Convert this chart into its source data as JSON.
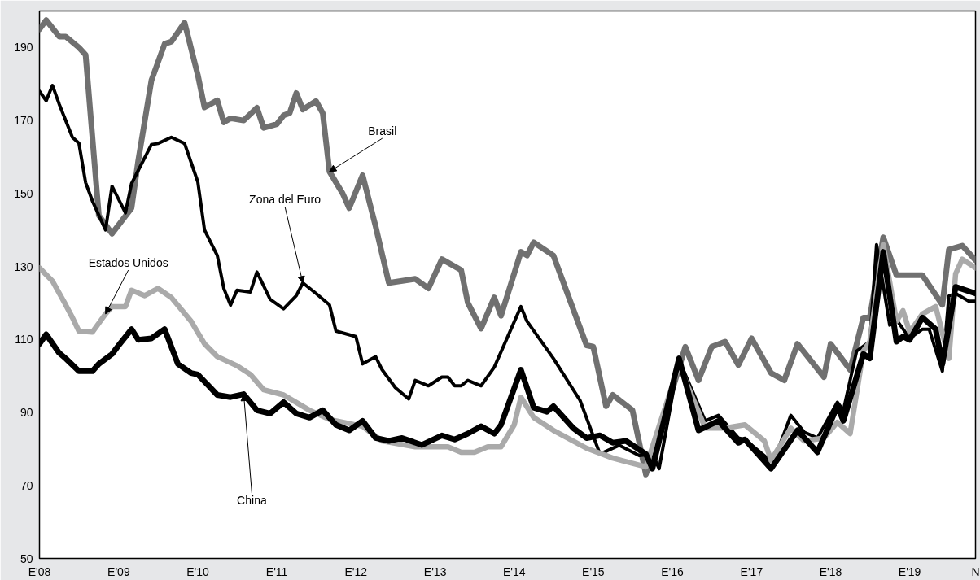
{
  "chart_data": {
    "type": "line",
    "ylim": [
      50,
      200
    ],
    "yticks": [
      50,
      70,
      90,
      110,
      130,
      150,
      170,
      190
    ],
    "xlim": [
      "2008-01",
      "2019-11"
    ],
    "xticks": [
      {
        "value": "2008-01",
        "label": "E'08"
      },
      {
        "value": "2009-01",
        "label": "E'09"
      },
      {
        "value": "2010-01",
        "label": "E'10"
      },
      {
        "value": "2011-01",
        "label": "E'11"
      },
      {
        "value": "2012-01",
        "label": "E'12"
      },
      {
        "value": "2013-01",
        "label": "E'13"
      },
      {
        "value": "2014-01",
        "label": "E'14"
      },
      {
        "value": "2015-01",
        "label": "E'15"
      },
      {
        "value": "2016-01",
        "label": "E'16"
      },
      {
        "value": "2017-01",
        "label": "E'17"
      },
      {
        "value": "2018-01",
        "label": "E'18"
      },
      {
        "value": "2019-01",
        "label": "E'19"
      },
      {
        "value": "2019-11",
        "label": "N"
      }
    ],
    "grid": false,
    "marker": "none",
    "line_style": "solid",
    "series": [
      {
        "color": "#707070",
        "x": [
          "2008-01",
          "2008-02",
          "2008-04",
          "2008-05",
          "2008-07",
          "2008-08",
          "2008-10",
          "2008-12",
          "2009-03",
          "2009-04",
          "2009-06",
          "2009-08",
          "2009-09",
          "2009-11",
          "2010-01",
          "2010-02",
          "2010-04",
          "2010-05",
          "2010-06",
          "2010-08",
          "2010-10",
          "2010-11",
          "2011-01",
          "2011-02",
          "2011-03",
          "2011-04",
          "2011-05",
          "2011-07",
          "2011-08",
          "2011-09",
          "2011-11",
          "2011-12",
          "2012-02",
          "2012-04",
          "2012-06",
          "2012-10",
          "2012-12",
          "2013-02",
          "2013-05",
          "2013-06",
          "2013-08",
          "2013-10",
          "2013-11",
          "2014-02",
          "2014-03",
          "2014-04",
          "2014-07",
          "2014-08",
          "2014-12",
          "2015-01",
          "2015-03",
          "2015-04",
          "2015-07",
          "2015-09",
          "2015-12",
          "2016-03",
          "2016-05",
          "2016-07",
          "2016-09",
          "2016-11",
          "2017-01",
          "2017-04",
          "2017-06",
          "2017-08",
          "2017-12",
          "2018-01",
          "2018-04",
          "2018-06",
          "2018-07",
          "2018-09",
          "2018-11",
          "2019-03",
          "2019-06",
          "2019-07",
          "2019-09",
          "2019-11"
        ],
        "values": [
          195,
          197.5,
          193,
          193,
          190,
          188,
          144,
          139,
          146,
          159,
          181,
          191,
          191.6,
          196.8,
          182.5,
          173.6,
          175.5,
          169.5,
          170.6,
          170,
          173.5,
          168,
          169,
          171.4,
          172,
          177.5,
          173,
          175.3,
          172,
          156,
          150,
          146,
          155,
          141,
          125.5,
          126.6,
          124,
          132,
          129,
          120,
          113,
          121.5,
          116.5,
          134,
          133,
          136.6,
          133,
          128,
          108.4,
          108,
          91.7,
          94.8,
          90.6,
          73,
          90,
          108,
          98.8,
          108,
          109.4,
          103,
          110.3,
          100.8,
          98.8,
          108.8,
          99.7,
          108.8,
          101.7,
          116,
          116,
          138,
          127.6,
          127.6,
          119.5,
          134.6,
          135.7,
          131.7
        ]
      },
      {
        "color": "#000000",
        "x": [
          "2008-01",
          "2008-02",
          "2008-03",
          "2008-04",
          "2008-06",
          "2008-07",
          "2008-08",
          "2008-09",
          "2008-11",
          "2008-12",
          "2009-02",
          "2009-03",
          "2009-06",
          "2009-07",
          "2009-09",
          "2009-11",
          "2010-01",
          "2010-02",
          "2010-04",
          "2010-05",
          "2010-06",
          "2010-07",
          "2010-09",
          "2010-10",
          "2010-12",
          "2011-02",
          "2011-04",
          "2011-05",
          "2011-07",
          "2011-09",
          "2011-10",
          "2012-01",
          "2012-02",
          "2012-04",
          "2012-05",
          "2012-07",
          "2012-09",
          "2012-10",
          "2012-12",
          "2013-02",
          "2013-03",
          "2013-04",
          "2013-05",
          "2013-06",
          "2013-08",
          "2013-10",
          "2014-02",
          "2014-03",
          "2014-07",
          "2014-11",
          "2015-02",
          "2015-05",
          "2015-08",
          "2015-10",
          "2015-11",
          "2016-02",
          "2016-06",
          "2016-08",
          "2016-11",
          "2016-12",
          "2017-04",
          "2017-05",
          "2017-07",
          "2017-09",
          "2017-11",
          "2018-02",
          "2018-03",
          "2018-05",
          "2018-07",
          "2018-08",
          "2018-10",
          "2018-11",
          "2019-01",
          "2019-03",
          "2019-04",
          "2019-06",
          "2019-07",
          "2019-08",
          "2019-10",
          "2019-11"
        ],
        "values": [
          178,
          175.4,
          179.6,
          174.5,
          165.4,
          163.8,
          153,
          148,
          140,
          152,
          144.7,
          152.7,
          163.4,
          163.7,
          165.4,
          163.7,
          153.2,
          140,
          133,
          124,
          119.4,
          123.5,
          123,
          128.5,
          121,
          118.4,
          122,
          125.5,
          122.6,
          119.5,
          112.3,
          110.8,
          103.3,
          105.3,
          101.7,
          96.8,
          93.7,
          98.8,
          97.3,
          99.7,
          99.7,
          97.3,
          97.3,
          98.8,
          97.3,
          102.4,
          119,
          115,
          104.8,
          93.3,
          78.6,
          81,
          78.2,
          78.6,
          74.6,
          104.4,
          87.7,
          89.2,
          83,
          82.6,
          76.6,
          79.5,
          89.2,
          84.6,
          83,
          92.8,
          90.6,
          106.8,
          109.4,
          136,
          113.9,
          115.4,
          110.3,
          112.8,
          112.8,
          101.3,
          121.9,
          122.6,
          120.5,
          120.5
        ]
      },
      {
        "color": "#aaaaaa",
        "x": [
          "2008-01",
          "2008-03",
          "2008-05",
          "2008-06",
          "2008-07",
          "2008-09",
          "2008-11",
          "2008-12",
          "2009-02",
          "2009-03",
          "2009-05",
          "2009-07",
          "2009-09",
          "2009-12",
          "2010-02",
          "2010-04",
          "2010-07",
          "2010-09",
          "2010-11",
          "2011-02",
          "2011-06",
          "2011-09",
          "2012-02",
          "2012-05",
          "2012-10",
          "2013-03",
          "2013-05",
          "2013-07",
          "2013-09",
          "2013-11",
          "2014-01",
          "2014-02",
          "2014-04",
          "2014-07",
          "2014-12",
          "2015-04",
          "2015-09",
          "2016-02",
          "2016-06",
          "2016-09",
          "2016-12",
          "2017-03",
          "2017-04",
          "2017-07",
          "2017-09",
          "2017-12",
          "2018-02",
          "2018-04",
          "2018-06",
          "2018-07",
          "2018-09",
          "2018-11",
          "2018-12",
          "2019-01",
          "2019-03",
          "2019-05",
          "2019-07",
          "2019-08",
          "2019-09",
          "2019-11"
        ],
        "values": [
          129.6,
          126,
          119.5,
          116,
          112.3,
          112,
          117,
          119,
          119,
          123.5,
          122,
          124,
          121.5,
          115,
          108.8,
          105.3,
          102.8,
          100.4,
          96.2,
          94.8,
          90.6,
          88.1,
          86.2,
          82.2,
          80.6,
          80.6,
          79.1,
          79.1,
          80.6,
          80.6,
          86.6,
          94.2,
          88.6,
          85.1,
          80.2,
          77.5,
          75.1,
          103,
          85.7,
          85.7,
          86.6,
          82.2,
          76.9,
          85.7,
          82.2,
          83,
          87.3,
          84.2,
          106.8,
          109.4,
          136,
          115,
          117.9,
          112,
          117,
          119,
          104.8,
          128,
          132,
          129.6
        ]
      },
      {
        "color": "#000000",
        "x": [
          "2008-01",
          "2008-02",
          "2008-04",
          "2008-05",
          "2008-07",
          "2008-09",
          "2008-10",
          "2008-12",
          "2009-01",
          "2009-03",
          "2009-04",
          "2009-06",
          "2009-08",
          "2009-10",
          "2009-12",
          "2010-01",
          "2010-04",
          "2010-06",
          "2010-08",
          "2010-10",
          "2010-12",
          "2011-02",
          "2011-04",
          "2011-06",
          "2011-08",
          "2011-10",
          "2011-12",
          "2012-02",
          "2012-04",
          "2012-06",
          "2012-08",
          "2012-11",
          "2013-02",
          "2013-04",
          "2013-06",
          "2013-08",
          "2013-10",
          "2013-11",
          "2014-02",
          "2014-04",
          "2014-06",
          "2014-07",
          "2014-10",
          "2014-12",
          "2015-02",
          "2015-04",
          "2015-06",
          "2015-09",
          "2015-10",
          "2016-02",
          "2016-05",
          "2016-08",
          "2016-11",
          "2016-12",
          "2017-04",
          "2017-08",
          "2017-11",
          "2018-02",
          "2018-03",
          "2018-06",
          "2018-07",
          "2018-09",
          "2018-11",
          "2018-12",
          "2019-01",
          "2019-03",
          "2019-05",
          "2019-06",
          "2019-08",
          "2019-11"
        ],
        "values": [
          108.8,
          111.4,
          106.3,
          104.8,
          101.3,
          101.3,
          103.3,
          106,
          108.4,
          112.8,
          109.9,
          110.3,
          112.8,
          103.3,
          100.8,
          100.4,
          94.8,
          94.2,
          95,
          90.6,
          89.7,
          92.8,
          89.7,
          88.6,
          90.6,
          86.6,
          85.1,
          87.7,
          83,
          82.2,
          83,
          81.1,
          83.7,
          82.6,
          84.2,
          86.2,
          84.2,
          86.6,
          101.7,
          91.3,
          90.2,
          91.7,
          85.7,
          83,
          83.7,
          81.7,
          82.2,
          78.6,
          74.6,
          104.8,
          85.1,
          87.7,
          81.7,
          82.6,
          74.6,
          85.1,
          79.1,
          91.7,
          87.7,
          106,
          104.8,
          134,
          109.4,
          110.8,
          109.9,
          116,
          112.8,
          103.3,
          124.4,
          122.6
        ]
      }
    ],
    "annotations": [
      {
        "text": "Brasil",
        "x": "2011-09",
        "y": 156
      },
      {
        "text": "Zona del Euro",
        "x": "2011-05",
        "y": 125.5
      },
      {
        "text": "Estados Unidos",
        "x": "2008-11",
        "y": 117
      },
      {
        "text": "China",
        "x": "2010-08",
        "y": 95
      }
    ]
  }
}
